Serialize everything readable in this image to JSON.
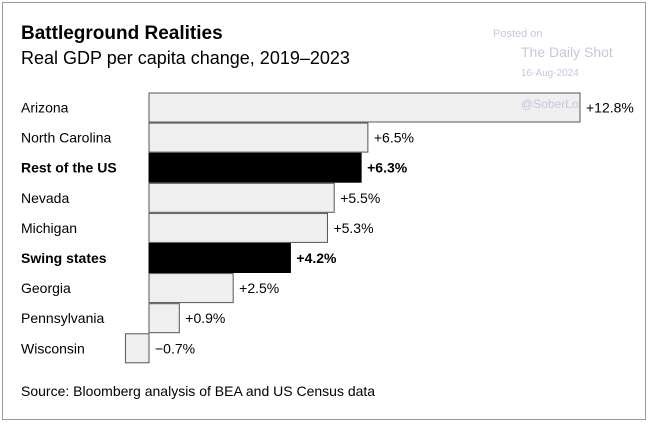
{
  "header": {
    "title": "Battleground Realities",
    "subtitle": "Real GDP per capita change, 2019–2023"
  },
  "watermark": {
    "posted": "Posted on",
    "site": "The Daily Shot",
    "date": "16-Aug-2024",
    "handle": "@SoberLo"
  },
  "footer": {
    "source": "Source: Bloomberg analysis of BEA and US Census data"
  },
  "colors": {
    "bar_fill": "#efefef",
    "bar_stroke": "#555555",
    "highlight_fill": "#000000"
  },
  "chart_data": {
    "type": "bar",
    "orientation": "horizontal",
    "grid": false,
    "legend": "none",
    "categories": [
      "Arizona",
      "North Carolina",
      "Rest of the US",
      "Nevada",
      "Michigan",
      "Swing states",
      "Georgia",
      "Pennsylvania",
      "Wisconsin"
    ],
    "values": [
      12.8,
      6.5,
      6.3,
      5.5,
      5.3,
      4.2,
      2.5,
      0.9,
      -0.7
    ],
    "labels": [
      "+12.8%",
      "+6.5%",
      "+6.3%",
      "+5.5%",
      "+5.3%",
      "+4.2%",
      "+2.5%",
      "+0.9%",
      "−0.7%"
    ],
    "highlighted": [
      "Rest of the US",
      "Swing states"
    ],
    "unit": "%",
    "xlim": [
      -0.7,
      12.8
    ]
  }
}
